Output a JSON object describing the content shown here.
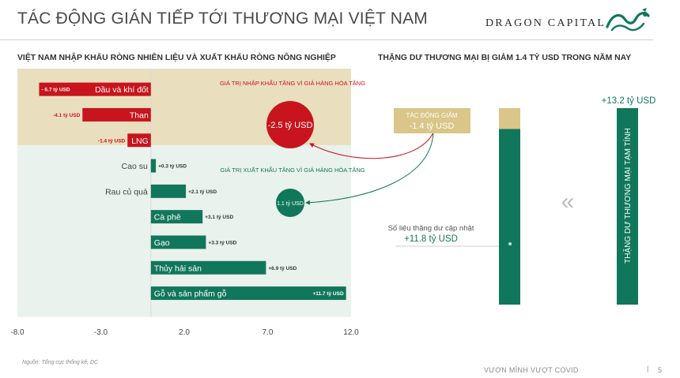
{
  "header": {
    "title": "TÁC ĐỘNG GIÁN TIẾP TỚI THƯƠNG MẠI VIỆT NAM",
    "brand": "DRAGON CAPITAL",
    "left_subtitle": "VIỆT NAM NHẬP KHẨU RÒNG NHIÊN LIỆU VÀ XUẤT KHẨU RÒNG NÔNG NGHIỆP",
    "right_subtitle": "THẶNG DƯ THƯƠNG MẠI BỊ GIẢM 1.4 TỶ USD TRONG NĂM NAY"
  },
  "colors": {
    "red": "#c8141c",
    "green": "#11775a",
    "fuel_band": "#e9dfbe",
    "agri_band": "#eaf2ee",
    "tan": "#d9c688"
  },
  "chart_data": [
    {
      "type": "bar",
      "orientation": "horizontal",
      "categories": [
        "Dầu và khí đốt",
        "Than",
        "LNG",
        "Cao su",
        "Rau củ quả",
        "Cà phê",
        "Gạo",
        "Thủy hải sản",
        "Gỗ và sản phẩm gỗ"
      ],
      "values": [
        -6.7,
        -4.1,
        -1.4,
        0.3,
        2.1,
        3.1,
        3.3,
        6.9,
        11.7
      ],
      "value_labels": [
        "- 6.7 tỷ USD",
        "-4.1 tỷ USD",
        "-1.4 tỷ USD",
        "+0.3 tỷ USD",
        "+2.1 tỷ USD",
        "+3.1 tỷ USD",
        "+3.3 tỷ USD",
        "+6.9 tỷ USD",
        "+11.7 tỷ USD"
      ],
      "xlim": [
        -8.0,
        12.0
      ],
      "xticks": [
        -8.0,
        -3.0,
        2.0,
        7.0,
        12.0
      ],
      "xtick_labels": [
        "-8.0",
        "-3.0",
        "2.0",
        "7.0",
        "12.0"
      ],
      "groups": [
        {
          "name": "fuel",
          "count": 3
        },
        {
          "name": "agri",
          "count": 6
        }
      ],
      "annotations": {
        "import": {
          "text": "GIÁ TRỊ NHẬP KHẨU TĂNG VÌ GIÁ HÀNG HÓA TĂNG",
          "value_label": "-2.5 tỷ USD",
          "value": -2.5
        },
        "export": {
          "text": "GIÁ TRỊ XUẤT KHẨU TĂNG VÌ GIÁ HÀNG HÓA TĂNG",
          "value_label": "1.1 tỷ USD",
          "value": 1.1
        }
      }
    },
    {
      "type": "waterfall",
      "total": {
        "label": "THẶNG DƯ THƯƠNG MẠI TẠM TÍNH",
        "value": 13.2,
        "value_label": "+13.2 tỷ USD"
      },
      "impact": {
        "label": "TÁC ĐỘNG GIẢM",
        "value": -1.4,
        "value_label": "-1.4 tỷ USD"
      },
      "updated": {
        "label": "Số liệu thặng dư cập nhật",
        "value": 11.8,
        "value_label": "+11.8 tỷ USD"
      }
    }
  ],
  "footer": {
    "source": "Nguồn: Tổng cục thống kê, DC",
    "tagline": "VƯƠN MÌNH VƯỢT COVID",
    "separator": "|",
    "page": "5"
  }
}
